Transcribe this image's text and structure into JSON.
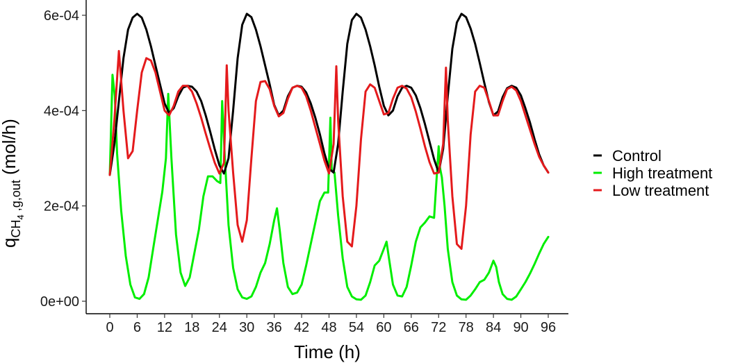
{
  "chart_data": {
    "type": "line",
    "xlabel": "Time (h)",
    "ylabel": {
      "main": "q",
      "sub1": "CH",
      "sub2": "4",
      "sub3": " ,g,out",
      "unit": " (mol/h)"
    },
    "xlim": [
      0,
      96
    ],
    "ylim": [
      0,
      0.0006
    ],
    "x_ticks": [
      0,
      6,
      12,
      18,
      24,
      30,
      36,
      42,
      48,
      54,
      60,
      66,
      72,
      78,
      84,
      90,
      96
    ],
    "x_tick_labels": [
      "0",
      "6",
      "12",
      "18",
      "24",
      "30",
      "36",
      "42",
      "48",
      "54",
      "60",
      "66",
      "72",
      "78",
      "84",
      "90",
      "96"
    ],
    "y_ticks": [
      0,
      0.0002,
      0.0004,
      0.0006
    ],
    "y_tick_labels": [
      "0e+00",
      "2e-04",
      "4e-04",
      "6e-04"
    ],
    "grid": false,
    "legend": {
      "position": "right"
    },
    "series": [
      {
        "name": "Control",
        "color": "#000000",
        "x": [
          0,
          1,
          2,
          3,
          4,
          5,
          6,
          7,
          8,
          9,
          10,
          11,
          12,
          13,
          14,
          15,
          16,
          17,
          18,
          19,
          20,
          21,
          22,
          23,
          24,
          25,
          26,
          27,
          28,
          29,
          30,
          31,
          32,
          33,
          34,
          35,
          36,
          37,
          38,
          39,
          40,
          41,
          42,
          43,
          44,
          45,
          46,
          47,
          48,
          49,
          50,
          51,
          52,
          53,
          54,
          55,
          56,
          57,
          58,
          59,
          60,
          61,
          62,
          63,
          64,
          65,
          66,
          67,
          68,
          69,
          70,
          71,
          72,
          73,
          74,
          75,
          76,
          77,
          78,
          79,
          80,
          81,
          82,
          83,
          84,
          85,
          86,
          87,
          88,
          89,
          90,
          91,
          92,
          93,
          94,
          95,
          96
        ],
        "values": [
          0.000265,
          0.00033,
          0.00042,
          0.00051,
          0.00057,
          0.000595,
          0.000603,
          0.000595,
          0.00057,
          0.000535,
          0.000495,
          0.000455,
          0.000415,
          0.000395,
          0.000405,
          0.00043,
          0.000448,
          0.000452,
          0.00045,
          0.00044,
          0.00042,
          0.00039,
          0.000355,
          0.000318,
          0.000285,
          0.000268,
          0.0003,
          0.0004,
          0.00051,
          0.00058,
          0.000603,
          0.000596,
          0.00057,
          0.000535,
          0.000495,
          0.000455,
          0.000412,
          0.00039,
          0.0004,
          0.00043,
          0.000448,
          0.000452,
          0.00045,
          0.000438,
          0.000415,
          0.000385,
          0.00035,
          0.00031,
          0.000278,
          0.00027,
          0.00033,
          0.00044,
          0.00054,
          0.00059,
          0.000603,
          0.000595,
          0.00057,
          0.000535,
          0.000495,
          0.00045,
          0.00041,
          0.00039,
          0.0004,
          0.00043,
          0.000448,
          0.000452,
          0.000448,
          0.000432,
          0.000405,
          0.000372,
          0.000335,
          0.000298,
          0.00027,
          0.00032,
          0.00043,
          0.00053,
          0.000585,
          0.000603,
          0.000596,
          0.000572,
          0.00054,
          0.0005,
          0.000458,
          0.000418,
          0.00039,
          0.000398,
          0.000428,
          0.000447,
          0.000452,
          0.000448,
          0.000432,
          0.000405,
          0.000375,
          0.00034,
          0.000308,
          0.000285,
          0.00027
        ]
      },
      {
        "name": "High treatment",
        "color": "#00ee00",
        "x": [
          0,
          0.6,
          1.1,
          1.6,
          2.5,
          3.5,
          4.5,
          5.5,
          6.5,
          7.5,
          8.5,
          9.5,
          10.5,
          11.5,
          12.3,
          12.8,
          13.5,
          14.5,
          15.5,
          16.5,
          17.5,
          18.5,
          19.5,
          20.5,
          21.5,
          22.5,
          23.5,
          24.2,
          24.6,
          25.2,
          26,
          27,
          28,
          29,
          30,
          31,
          32,
          33,
          34,
          35,
          36,
          36.6,
          37.2,
          38,
          39,
          40,
          41,
          42,
          43,
          44,
          45,
          46,
          47,
          47.8,
          48.3,
          48.6,
          49.2,
          50,
          51,
          52,
          53,
          54,
          55,
          56,
          57,
          58,
          59,
          60,
          60.6,
          61.2,
          62,
          63,
          64,
          65,
          66,
          67,
          68,
          69,
          70,
          71,
          72,
          72.3,
          72.7,
          73.3,
          74,
          75,
          76,
          77,
          78,
          79,
          80,
          81,
          82,
          83,
          84,
          84.6,
          85.2,
          86,
          87,
          88,
          89,
          90,
          91,
          92,
          93,
          94,
          95,
          96
        ],
        "values": [
          0.000265,
          0.000475,
          0.00043,
          0.00031,
          0.00019,
          9.5e-05,
          3.5e-05,
          8e-06,
          5e-06,
          1.5e-05,
          5e-05,
          0.00011,
          0.00017,
          0.00023,
          0.0003,
          0.000435,
          0.0003,
          0.00014,
          6e-05,
          3.2e-05,
          5e-05,
          0.0001,
          0.00015,
          0.00022,
          0.000262,
          0.000262,
          0.000252,
          0.000248,
          0.00042,
          0.0003,
          0.00016,
          7e-05,
          2.5e-05,
          8e-06,
          5e-06,
          1e-05,
          3e-05,
          6e-05,
          8e-05,
          0.00012,
          0.00017,
          0.000195,
          0.00015,
          8e-05,
          3e-05,
          1.5e-05,
          1.8e-05,
          3.5e-05,
          7.5e-05,
          0.00012,
          0.000165,
          0.00021,
          0.000228,
          0.000228,
          0.000385,
          0.000275,
          0.00027,
          0.00018,
          9e-05,
          3e-05,
          1e-05,
          4e-06,
          3e-06,
          1.2e-05,
          4e-05,
          7.5e-05,
          8.5e-05,
          0.00011,
          0.000125,
          8.5e-05,
          3.5e-05,
          1.2e-05,
          1e-05,
          3e-05,
          7.5e-05,
          0.000125,
          0.000155,
          0.000165,
          0.000178,
          0.000175,
          0.000325,
          0.00028,
          0.00026,
          0.0002,
          0.00011,
          4e-05,
          1.2e-05,
          4e-06,
          3e-06,
          1.2e-05,
          2.5e-05,
          4e-05,
          4.5e-05,
          6e-05,
          8.5e-05,
          7.2e-05,
          4e-05,
          1.5e-05,
          5e-06,
          3e-06,
          1e-05,
          2.5e-05,
          4e-05,
          5.8e-05,
          7.8e-05,
          0.0001,
          0.00012,
          0.000135
        ]
      },
      {
        "name": "Low treatment",
        "color": "#e41a1c",
        "x": [
          0,
          1,
          2,
          3,
          4,
          5,
          6,
          7,
          8,
          9,
          10,
          11,
          12,
          13,
          14,
          15,
          16,
          17,
          18,
          19,
          20,
          21,
          22,
          23,
          24,
          25,
          25.6,
          26,
          27,
          28,
          29,
          30,
          31,
          32,
          33,
          34,
          35,
          36,
          37,
          38,
          39,
          40,
          41,
          42,
          43,
          44,
          45,
          46,
          47,
          48,
          49,
          49.6,
          50,
          51,
          52,
          53,
          54,
          55,
          56,
          57,
          58,
          59,
          60,
          61,
          62,
          63,
          64,
          65,
          66,
          67,
          68,
          69,
          70,
          71,
          72,
          73,
          73.6,
          74,
          75,
          76,
          77,
          78,
          79,
          80,
          81,
          82,
          83,
          84,
          85,
          86,
          87,
          88,
          89,
          90,
          91,
          92,
          93,
          94,
          95,
          96
        ],
        "values": [
          0.000265,
          0.00038,
          0.000525,
          0.0004,
          0.0003,
          0.000315,
          0.0004,
          0.00048,
          0.00051,
          0.000505,
          0.00048,
          0.00044,
          0.0004,
          0.00039,
          0.00041,
          0.00044,
          0.000452,
          0.000452,
          0.00044,
          0.000415,
          0.000385,
          0.000352,
          0.00032,
          0.00029,
          0.000268,
          0.00029,
          0.000495,
          0.0004,
          0.00027,
          0.00016,
          0.000125,
          0.00017,
          0.0003,
          0.00042,
          0.00046,
          0.000462,
          0.000445,
          0.00041,
          0.000388,
          0.000395,
          0.000425,
          0.000448,
          0.000452,
          0.000448,
          0.00043,
          0.0004,
          0.000365,
          0.00033,
          0.000295,
          0.000268,
          0.00033,
          0.000493,
          0.00038,
          0.00022,
          0.000125,
          0.000115,
          0.0002,
          0.00034,
          0.00044,
          0.000455,
          0.000448,
          0.00042,
          0.000392,
          0.000395,
          0.000425,
          0.000448,
          0.000452,
          0.000446,
          0.000428,
          0.000398,
          0.000362,
          0.000325,
          0.000292,
          0.000268,
          0.00027,
          0.00033,
          0.00049,
          0.00038,
          0.00022,
          0.00012,
          0.00011,
          0.0002,
          0.00035,
          0.00044,
          0.000452,
          0.000448,
          0.00042,
          0.00039,
          0.00039,
          0.00042,
          0.000445,
          0.00045,
          0.000442,
          0.00042,
          0.00039,
          0.00036,
          0.00033,
          0.000303,
          0.000285,
          0.00027
        ]
      }
    ]
  }
}
